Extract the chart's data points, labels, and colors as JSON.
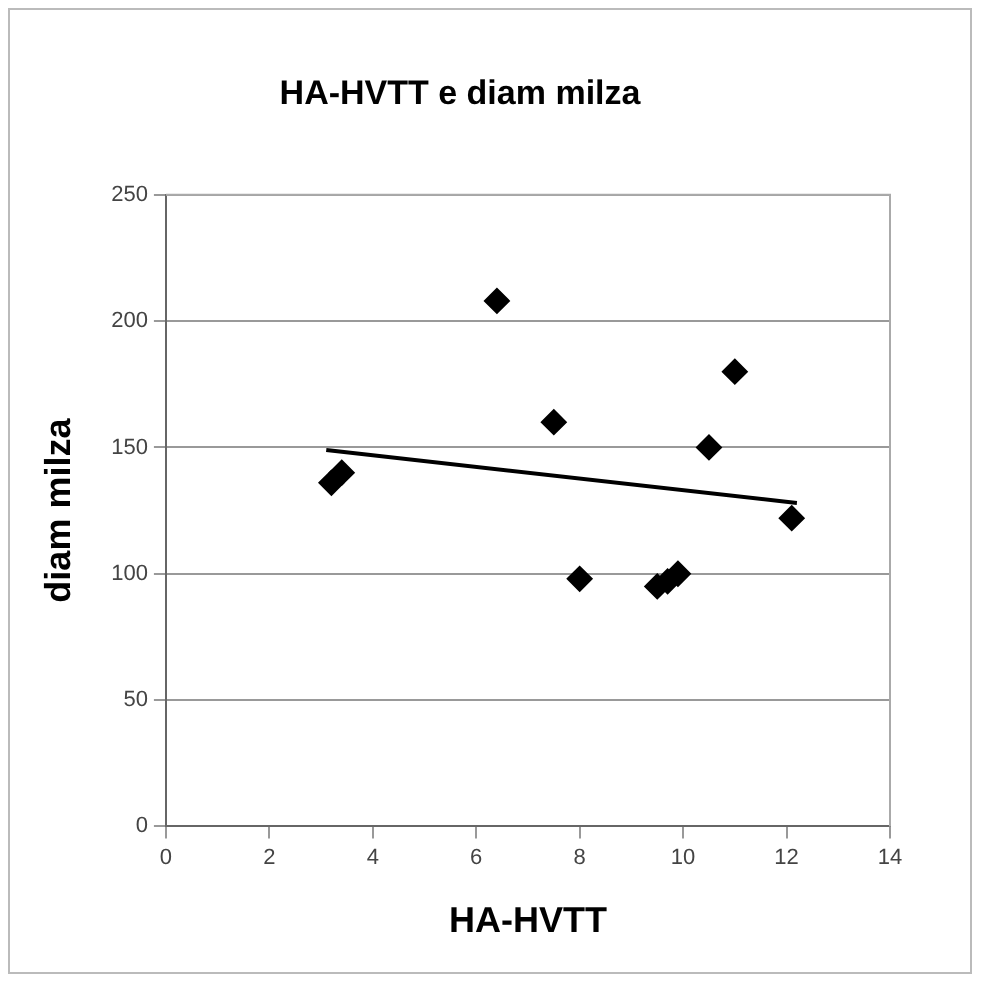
{
  "chart_data": {
    "type": "scatter",
    "title": "HA-HVTT e diam milza",
    "xlabel": "HA-HVTT",
    "ylabel": "diam milza",
    "xlim": [
      0,
      14
    ],
    "xticks": [
      0,
      2,
      4,
      6,
      8,
      10,
      12,
      14
    ],
    "ylim": [
      0,
      250
    ],
    "yticks": [
      0,
      50,
      100,
      150,
      200,
      250
    ],
    "grid": "y",
    "legend": false,
    "series": [
      {
        "marker": "diamond",
        "color": "#000000",
        "x": [
          3.2,
          3.4,
          6.4,
          7.5,
          8.0,
          9.5,
          9.7,
          9.9,
          10.5,
          11.0,
          12.1
        ],
        "values": [
          136,
          140,
          208,
          160,
          98,
          95,
          97,
          100,
          150,
          180,
          122
        ]
      },
      {
        "type": "line",
        "marker": "none",
        "color": "#000000",
        "x": [
          3.1,
          12.2
        ],
        "values": [
          149,
          128
        ]
      }
    ]
  }
}
